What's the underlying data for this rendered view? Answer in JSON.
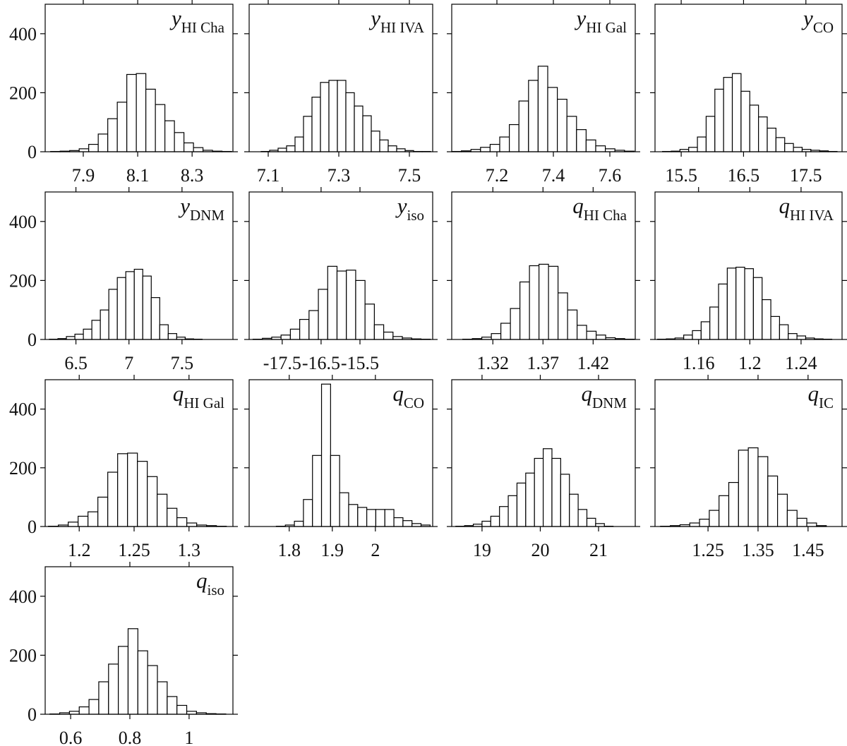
{
  "chart_data": [
    {
      "type": "histogram",
      "label": "y",
      "label_sub": "HI Cha",
      "xlim": [
        7.76,
        8.45
      ],
      "xticks": [
        7.9,
        8.1,
        8.3
      ],
      "ylim": [
        0,
        500
      ],
      "yticks": [
        0,
        200,
        400
      ],
      "bins": [
        7.78,
        7.815,
        7.85,
        7.885,
        7.92,
        7.955,
        7.99,
        8.025,
        8.06,
        8.095,
        8.13,
        8.165,
        8.2,
        8.235,
        8.27,
        8.305,
        8.34,
        8.375,
        8.41,
        8.445
      ],
      "counts": [
        1,
        2,
        4,
        10,
        25,
        60,
        112,
        168,
        262,
        265,
        212,
        160,
        105,
        65,
        30,
        14,
        5,
        2,
        1
      ]
    },
    {
      "type": "histogram",
      "label": "y",
      "label_sub": "HI IVA",
      "xlim": [
        7.046,
        7.566
      ],
      "xticks": [
        7.1,
        7.3,
        7.5
      ],
      "ylim": [
        0,
        500
      ],
      "yticks": [
        0,
        200,
        400
      ],
      "bins": [
        7.08,
        7.104,
        7.128,
        7.152,
        7.176,
        7.2,
        7.224,
        7.248,
        7.272,
        7.296,
        7.32,
        7.344,
        7.368,
        7.392,
        7.416,
        7.44,
        7.464,
        7.488,
        7.512,
        7.536,
        7.56
      ],
      "counts": [
        1,
        5,
        12,
        20,
        50,
        120,
        185,
        235,
        242,
        242,
        200,
        155,
        122,
        70,
        40,
        20,
        10,
        4,
        1,
        1
      ]
    },
    {
      "type": "histogram",
      "label": "y",
      "label_sub": "HI Gal",
      "xlim": [
        7.04,
        7.69
      ],
      "xticks": [
        7.2,
        7.4,
        7.6
      ],
      "ylim": [
        0,
        500
      ],
      "yticks": [
        0,
        200,
        400
      ],
      "bins": [
        7.04,
        7.074,
        7.108,
        7.142,
        7.176,
        7.21,
        7.244,
        7.278,
        7.312,
        7.346,
        7.38,
        7.414,
        7.448,
        7.482,
        7.516,
        7.55,
        7.584,
        7.618,
        7.652,
        7.686
      ],
      "counts": [
        1,
        3,
        8,
        15,
        25,
        50,
        92,
        172,
        242,
        290,
        218,
        178,
        120,
        75,
        40,
        20,
        10,
        5,
        2
      ]
    },
    {
      "type": "histogram",
      "label": "y",
      "label_sub": "CO",
      "xlim": [
        15.08,
        18.08
      ],
      "xticks": [
        15.5,
        16.5,
        17.5
      ],
      "ylim": [
        0,
        500
      ],
      "yticks": [
        0,
        200,
        400
      ],
      "bins": [
        15.2,
        15.34,
        15.48,
        15.62,
        15.76,
        15.9,
        16.04,
        16.18,
        16.32,
        16.46,
        16.6,
        16.74,
        16.88,
        17.02,
        17.16,
        17.3,
        17.44,
        17.58,
        17.72,
        17.86,
        18
      ],
      "counts": [
        1,
        2,
        8,
        15,
        50,
        120,
        212,
        252,
        265,
        205,
        158,
        118,
        80,
        48,
        28,
        15,
        8,
        5,
        3,
        1
      ]
    },
    {
      "type": "histogram",
      "label": "y",
      "label_sub": "DNM",
      "xlim": [
        6.21,
        7.98
      ],
      "xticks": [
        6.5,
        7,
        7.5
      ],
      "ylim": [
        0,
        500
      ],
      "yticks": [
        0,
        200,
        400
      ],
      "bins": [
        6.25,
        6.33,
        6.41,
        6.49,
        6.57,
        6.65,
        6.73,
        6.81,
        6.89,
        6.97,
        7.05,
        7.13,
        7.21,
        7.29,
        7.37,
        7.45,
        7.53,
        7.61,
        7.69
      ],
      "counts": [
        1,
        3,
        10,
        18,
        35,
        65,
        100,
        170,
        210,
        230,
        238,
        215,
        142,
        50,
        20,
        8,
        2,
        1
      ]
    },
    {
      "type": "histogram",
      "label": "y",
      "label_sub": "iso",
      "xlim": [
        -18.35,
        -13.63
      ],
      "xticks": [
        -17.5,
        -16.5,
        -15.5
      ],
      "ylim": [
        0,
        500
      ],
      "yticks": [
        0,
        200,
        400
      ],
      "bins": [
        -18.25,
        -18.01,
        -17.77,
        -17.53,
        -17.29,
        -17.05,
        -16.81,
        -16.57,
        -16.33,
        -16.09,
        -15.85,
        -15.61,
        -15.37,
        -15.13,
        -14.89,
        -14.65,
        -14.41,
        -14.17,
        -13.93,
        -13.69
      ],
      "counts": [
        1,
        4,
        8,
        15,
        35,
        68,
        98,
        170,
        248,
        232,
        235,
        200,
        120,
        50,
        25,
        10,
        5,
        2,
        1
      ]
    },
    {
      "type": "histogram",
      "label": "q",
      "label_sub": "HI Cha",
      "xlim": [
        1.279,
        1.462
      ],
      "xticks": [
        1.32,
        1.37,
        1.42
      ],
      "ylim": [
        0,
        500
      ],
      "yticks": [
        0,
        200,
        400
      ],
      "bins": [
        1.29,
        1.2995,
        1.309,
        1.3185,
        1.328,
        1.3375,
        1.347,
        1.3565,
        1.366,
        1.3755,
        1.385,
        1.3945,
        1.404,
        1.4135,
        1.423,
        1.4325,
        1.442,
        1.4515,
        1.461
      ],
      "counts": [
        1,
        3,
        8,
        20,
        55,
        105,
        195,
        250,
        255,
        248,
        158,
        100,
        48,
        28,
        15,
        6,
        3,
        1
      ]
    },
    {
      "type": "histogram",
      "label": "q",
      "label_sub": "HI IVA",
      "xlim": [
        1.126,
        1.272
      ],
      "xticks": [
        1.16,
        1.2,
        1.24
      ],
      "ylim": [
        0,
        500
      ],
      "yticks": [
        0,
        200,
        400
      ],
      "bins": [
        1.128,
        1.1348,
        1.1416,
        1.1484,
        1.1552,
        1.162,
        1.1688,
        1.1756,
        1.1824,
        1.1892,
        1.196,
        1.2028,
        1.2096,
        1.2164,
        1.2232,
        1.23,
        1.2368,
        1.2436,
        1.2504,
        1.2572,
        1.264
      ],
      "counts": [
        1,
        2,
        5,
        15,
        30,
        60,
        110,
        188,
        242,
        245,
        240,
        210,
        135,
        78,
        50,
        20,
        12,
        5,
        2,
        1
      ]
    },
    {
      "type": "histogram",
      "label": "q",
      "label_sub": "HI Gal",
      "xlim": [
        1.169,
        1.34
      ],
      "xticks": [
        1.2,
        1.25,
        1.3
      ],
      "ylim": [
        0,
        500
      ],
      "yticks": [
        0,
        200,
        400
      ],
      "bins": [
        1.172,
        1.181,
        1.19,
        1.199,
        1.208,
        1.217,
        1.226,
        1.235,
        1.244,
        1.253,
        1.262,
        1.271,
        1.28,
        1.289,
        1.298,
        1.307,
        1.316,
        1.325,
        1.334
      ],
      "counts": [
        1,
        5,
        15,
        35,
        50,
        100,
        185,
        248,
        250,
        222,
        170,
        110,
        62,
        30,
        12,
        5,
        3,
        1
      ]
    },
    {
      "type": "histogram",
      "label": "q",
      "label_sub": "CO",
      "xlim": [
        1.707,
        2.133
      ],
      "xticks": [
        1.8,
        1.9,
        2
      ],
      "ylim": [
        0,
        500
      ],
      "yticks": [
        0,
        200,
        400
      ],
      "bins": [
        1.77,
        1.791,
        1.812,
        1.833,
        1.854,
        1.875,
        1.896,
        1.917,
        1.938,
        1.959,
        1.98,
        2.001,
        2.022,
        2.043,
        2.064,
        2.085,
        2.106,
        2.127
      ],
      "counts": [
        1,
        5,
        18,
        92,
        242,
        485,
        242,
        115,
        75,
        65,
        58,
        58,
        58,
        30,
        20,
        10,
        5
      ]
    },
    {
      "type": "histogram",
      "label": "q",
      "label_sub": "DNM",
      "xlim": [
        18.48,
        21.63
      ],
      "xticks": [
        19,
        20,
        21
      ],
      "ylim": [
        0,
        500
      ],
      "yticks": [
        0,
        200,
        400
      ],
      "bins": [
        18.55,
        18.7,
        18.85,
        19,
        19.15,
        19.3,
        19.45,
        19.6,
        19.75,
        19.9,
        20.05,
        20.2,
        20.35,
        20.5,
        20.65,
        20.8,
        20.95,
        21.1,
        21.25
      ],
      "counts": [
        1,
        3,
        8,
        18,
        35,
        68,
        105,
        148,
        182,
        232,
        265,
        232,
        178,
        110,
        58,
        28,
        10,
        1
      ]
    },
    {
      "type": "histogram",
      "label": "q",
      "label_sub": "IC",
      "xlim": [
        1.144,
        1.518
      ],
      "xticks": [
        1.25,
        1.35,
        1.45
      ],
      "ylim": [
        0,
        500
      ],
      "yticks": [
        0,
        200,
        400
      ],
      "bins": [
        1.155,
        1.1745,
        1.194,
        1.2135,
        1.233,
        1.2525,
        1.272,
        1.2915,
        1.311,
        1.3305,
        1.35,
        1.3695,
        1.389,
        1.4085,
        1.428,
        1.4475,
        1.467,
        1.4865
      ],
      "counts": [
        1,
        3,
        6,
        12,
        25,
        55,
        105,
        150,
        260,
        268,
        238,
        172,
        110,
        55,
        28,
        12,
        3
      ]
    },
    {
      "type": "histogram",
      "label": "q",
      "label_sub": "iso",
      "xlim": [
        0.514,
        1.148
      ],
      "xticks": [
        0.6,
        0.8,
        1
      ],
      "ylim": [
        0,
        500
      ],
      "yticks": [
        0,
        200,
        400
      ],
      "bins": [
        0.53,
        0.563,
        0.596,
        0.629,
        0.662,
        0.695,
        0.728,
        0.761,
        0.794,
        0.827,
        0.86,
        0.893,
        0.926,
        0.959,
        0.992,
        1.025,
        1.058,
        1.091,
        1.124
      ],
      "counts": [
        1,
        5,
        10,
        25,
        50,
        110,
        170,
        230,
        290,
        215,
        165,
        110,
        60,
        30,
        10,
        5,
        2,
        1
      ]
    }
  ]
}
